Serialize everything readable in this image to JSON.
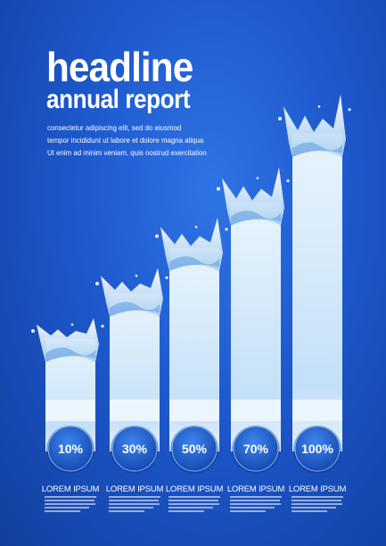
{
  "header": {
    "title": "headline",
    "subtitle": "annual report",
    "body_lines": [
      "consectetur  adipiscing elit,  sed do  eiusmod",
      "tempor incididunt ut labore et dolore magna aliqua",
      "Ut enim ad minim veniam, quis nostrud exercitation"
    ]
  },
  "chart_data": {
    "type": "bar",
    "categories": [
      "LOREM IPSUM",
      "LOREM IPSUM",
      "LOREM IPSUM",
      "LOREM IPSUM",
      "LOREM IPSUM"
    ],
    "values": [
      10,
      30,
      50,
      70,
      100
    ],
    "value_labels": [
      "10%",
      "30%",
      "50%",
      "70%",
      "100%"
    ],
    "title": "",
    "xlabel": "",
    "ylabel": "",
    "ylim": [
      0,
      100
    ],
    "grid": false,
    "legend": "none"
  },
  "colors": {
    "background": "#1d58cc",
    "bar": "#d6ecfb",
    "badge": "#1f63d8",
    "text": "#ffffff"
  }
}
